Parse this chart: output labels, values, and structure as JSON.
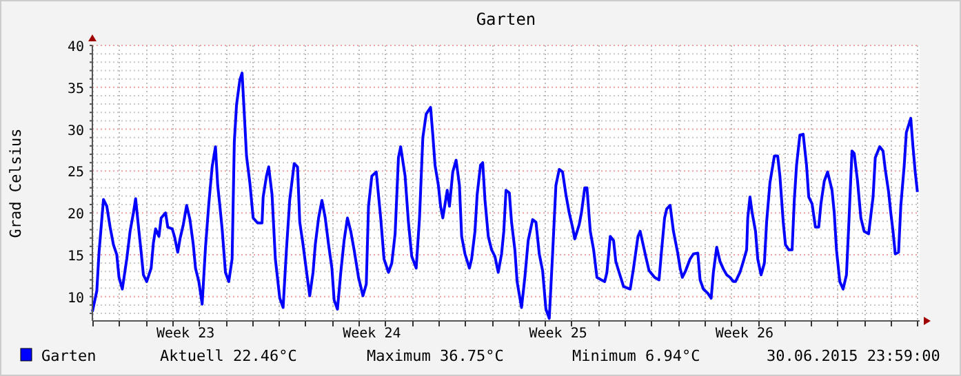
{
  "chart_data": {
    "type": "line",
    "title": "Garten",
    "ylabel": "Grad Celsius",
    "xlim": [
      "2015-05-31T00:00",
      "2015-07-01T02:00"
    ],
    "ylim": [
      7.1,
      40
    ],
    "xticks": [
      {
        "value": "2015-05-31T00:00",
        "label": null
      },
      {
        "value": "2015-06-01T00:00",
        "label": null
      },
      {
        "value": "2015-06-02T00:00",
        "label": null
      },
      {
        "value": "2015-06-03T00:00",
        "label": null
      },
      {
        "value": "2015-06-03T12:00",
        "label": "Week 23"
      },
      {
        "value": "2015-06-04T00:00",
        "label": null
      },
      {
        "value": "2015-06-05T00:00",
        "label": null
      },
      {
        "value": "2015-06-06T00:00",
        "label": null
      },
      {
        "value": "2015-06-07T00:00",
        "label": null
      },
      {
        "value": "2015-06-08T00:00",
        "label": null
      },
      {
        "value": "2015-06-09T00:00",
        "label": null
      },
      {
        "value": "2015-06-10T00:00",
        "label": null
      },
      {
        "value": "2015-06-10T12:00",
        "label": "Week 24"
      },
      {
        "value": "2015-06-11T00:00",
        "label": null
      },
      {
        "value": "2015-06-12T00:00",
        "label": null
      },
      {
        "value": "2015-06-13T00:00",
        "label": null
      },
      {
        "value": "2015-06-14T00:00",
        "label": null
      },
      {
        "value": "2015-06-15T00:00",
        "label": null
      },
      {
        "value": "2015-06-16T00:00",
        "label": null
      },
      {
        "value": "2015-06-17T00:00",
        "label": null
      },
      {
        "value": "2015-06-17T12:00",
        "label": "Week 25"
      },
      {
        "value": "2015-06-18T00:00",
        "label": null
      },
      {
        "value": "2015-06-19T00:00",
        "label": null
      },
      {
        "value": "2015-06-20T00:00",
        "label": null
      },
      {
        "value": "2015-06-21T00:00",
        "label": null
      },
      {
        "value": "2015-06-22T00:00",
        "label": null
      },
      {
        "value": "2015-06-23T00:00",
        "label": null
      },
      {
        "value": "2015-06-24T00:00",
        "label": null
      },
      {
        "value": "2015-06-24T12:00",
        "label": "Week 26"
      },
      {
        "value": "2015-06-25T00:00",
        "label": null
      },
      {
        "value": "2015-06-26T00:00",
        "label": null
      },
      {
        "value": "2015-06-27T00:00",
        "label": null
      },
      {
        "value": "2015-06-28T00:00",
        "label": null
      },
      {
        "value": "2015-06-29T00:00",
        "label": null
      },
      {
        "value": "2015-06-30T00:00",
        "label": null
      },
      {
        "value": "2015-07-01T00:00",
        "label": null
      }
    ],
    "yticks": [
      {
        "value": 8,
        "label": null
      },
      {
        "value": 9,
        "label": null
      },
      10,
      {
        "value": 11,
        "label": null
      },
      {
        "value": 12,
        "label": null
      },
      {
        "value": 13,
        "label": null
      },
      {
        "value": 14,
        "label": null
      },
      15,
      {
        "value": 16,
        "label": null
      },
      {
        "value": 17,
        "label": null
      },
      {
        "value": 18,
        "label": null
      },
      {
        "value": 19,
        "label": null
      },
      20,
      {
        "value": 21,
        "label": null
      },
      {
        "value": 22,
        "label": null
      },
      {
        "value": 23,
        "label": null
      },
      {
        "value": 24,
        "label": null
      },
      25,
      {
        "value": 26,
        "label": null
      },
      {
        "value": 27,
        "label": null
      },
      {
        "value": 28,
        "label": null
      },
      {
        "value": 29,
        "label": null
      },
      30,
      {
        "value": 31,
        "label": null
      },
      {
        "value": 32,
        "label": null
      },
      {
        "value": 33,
        "label": null
      },
      {
        "value": 34,
        "label": null
      },
      35,
      {
        "value": 36,
        "label": null
      },
      {
        "value": 37,
        "label": null
      },
      {
        "value": 38,
        "label": null
      },
      {
        "value": 39,
        "label": null
      },
      40
    ],
    "grid": true,
    "legend": "bottom",
    "line_style": "solid",
    "annotations": [
      "Aktuell 22.46°C",
      "Maximum 36.75°C",
      "Minimum 6.94°C",
      "30.06.2015 23:59:00"
    ],
    "series": [
      {
        "name": "Garten",
        "color": "#0000ff",
        "x": [
          "2015-05-31T00:00",
          "2015-05-31T04:00",
          "2015-05-31T06:00",
          "2015-05-31T10:00",
          "2015-05-31T13:00",
          "2015-05-31T16:00",
          "2015-05-31T19:00",
          "2015-05-31T22:00",
          "2015-06-01T00:00",
          "2015-06-01T03:00",
          "2015-06-01T07:00",
          "2015-06-01T10:00",
          "2015-06-01T13:00",
          "2015-06-01T15:00",
          "2015-06-01T18:00",
          "2015-06-01T20:00",
          "2015-06-01T22:00",
          "2015-06-02T01:00",
          "2015-06-02T05:00",
          "2015-06-02T07:00",
          "2015-06-02T09:00",
          "2015-06-02T12:00",
          "2015-06-02T14:00",
          "2015-06-02T18:00",
          "2015-06-02T20:00",
          "2015-06-03T00:00",
          "2015-06-03T02:00",
          "2015-06-03T05:00",
          "2015-06-03T07:00",
          "2015-06-03T10:00",
          "2015-06-03T13:00",
          "2015-06-03T16:00",
          "2015-06-03T19:00",
          "2015-06-03T21:00",
          "2015-06-04T00:00",
          "2015-06-04T03:00",
          "2015-06-04T06:00",
          "2015-06-04T09:00",
          "2015-06-04T12:00",
          "2015-06-04T15:00",
          "2015-06-04T17:00",
          "2015-06-04T19:00",
          "2015-06-04T21:00",
          "2015-06-05T00:00",
          "2015-06-05T03:00",
          "2015-06-05T06:00",
          "2015-06-05T08:00",
          "2015-06-05T10:00",
          "2015-06-05T13:00",
          "2015-06-05T15:00",
          "2015-06-05T17:00",
          "2015-06-05T19:00",
          "2015-06-05T22:00",
          "2015-06-06T01:00",
          "2015-06-06T05:00",
          "2015-06-06T09:00",
          "2015-06-06T10:00",
          "2015-06-06T13:00",
          "2015-06-06T15:00",
          "2015-06-06T18:00",
          "2015-06-06T21:00",
          "2015-06-07T01:00",
          "2015-06-07T04:00",
          "2015-06-07T07:00",
          "2015-06-07T10:00",
          "2015-06-07T14:00",
          "2015-06-07T17:00",
          "2015-06-07T19:00",
          "2015-06-07T22:00",
          "2015-06-08T01:00",
          "2015-06-08T04:00",
          "2015-06-08T07:00",
          "2015-06-08T09:00",
          "2015-06-08T12:00",
          "2015-06-08T15:00",
          "2015-06-08T18:00",
          "2015-06-08T21:00",
          "2015-06-09T00:00",
          "2015-06-09T02:00",
          "2015-06-09T05:00",
          "2015-06-09T08:00",
          "2015-06-09T11:00",
          "2015-06-09T14:00",
          "2015-06-09T17:00",
          "2015-06-09T20:00",
          "2015-06-10T00:00",
          "2015-06-10T04:00",
          "2015-06-10T07:00",
          "2015-06-10T09:00",
          "2015-06-10T12:00",
          "2015-06-10T16:00",
          "2015-06-10T20:00",
          "2015-06-10T23:00",
          "2015-06-11T03:00",
          "2015-06-11T06:00",
          "2015-06-11T09:00",
          "2015-06-11T12:00",
          "2015-06-11T14:00",
          "2015-06-11T18:00",
          "2015-06-11T21:00",
          "2015-06-12T00:00",
          "2015-06-12T04:00",
          "2015-06-12T07:00",
          "2015-06-12T10:00",
          "2015-06-12T13:00",
          "2015-06-12T17:00",
          "2015-06-12T19:00",
          "2015-06-12T21:00",
          "2015-06-13T00:00",
          "2015-06-13T02:00",
          "2015-06-13T04:00",
          "2015-06-13T08:00",
          "2015-06-13T10:00",
          "2015-06-13T13:00",
          "2015-06-13T16:00",
          "2015-06-13T19:00",
          "2015-06-13T21:00",
          "2015-06-14T00:00",
          "2015-06-14T04:00",
          "2015-06-14T06:00",
          "2015-06-14T09:00",
          "2015-06-14T11:00",
          "2015-06-14T14:00",
          "2015-06-14T16:00",
          "2015-06-14T18:00",
          "2015-06-14T21:00",
          "2015-06-15T00:00",
          "2015-06-15T03:00",
          "2015-06-15T06:00",
          "2015-06-15T09:00",
          "2015-06-15T11:00",
          "2015-06-15T13:00",
          "2015-06-15T16:00",
          "2015-06-15T18:00",
          "2015-06-15T21:00",
          "2015-06-15T23:00",
          "2015-06-16T03:00",
          "2015-06-16T06:00",
          "2015-06-16T09:00",
          "2015-06-16T13:00",
          "2015-06-16T16:00",
          "2015-06-16T19:00",
          "2015-06-16T22:00",
          "2015-06-17T01:00",
          "2015-06-17T04:00",
          "2015-06-17T07:00",
          "2015-06-17T10:00",
          "2015-06-17T13:00",
          "2015-06-17T16:00",
          "2015-06-17T19:00",
          "2015-06-17T22:00",
          "2015-06-18T01:00",
          "2015-06-18T03:00",
          "2015-06-18T07:00",
          "2015-06-18T09:00",
          "2015-06-18T12:00",
          "2015-06-18T14:00",
          "2015-06-18T17:00",
          "2015-06-18T20:00",
          "2015-06-18T23:00",
          "2015-06-19T03:00",
          "2015-06-19T06:00",
          "2015-06-19T08:00",
          "2015-06-19T11:00",
          "2015-06-19T14:00",
          "2015-06-19T16:00",
          "2015-06-19T19:00",
          "2015-06-19T23:00",
          "2015-06-20T05:00",
          "2015-06-20T08:00",
          "2015-06-20T12:00",
          "2015-06-20T14:00",
          "2015-06-20T19:00",
          "2015-06-20T22:00",
          "2015-06-21T03:00",
          "2015-06-21T07:00",
          "2015-06-21T09:00",
          "2015-06-21T12:00",
          "2015-06-21T14:00",
          "2015-06-21T17:00",
          "2015-06-21T20:00",
          "2015-06-22T00:00",
          "2015-06-22T02:00",
          "2015-06-22T04:00",
          "2015-06-22T07:00",
          "2015-06-22T11:00",
          "2015-06-22T14:00",
          "2015-06-22T18:00",
          "2015-06-22T20:00",
          "2015-06-22T23:00",
          "2015-06-23T03:00",
          "2015-06-23T06:00",
          "2015-06-23T08:00",
          "2015-06-23T11:00",
          "2015-06-23T14:00",
          "2015-06-23T17:00",
          "2015-06-23T20:00",
          "2015-06-23T23:00",
          "2015-06-24T02:00",
          "2015-06-24T04:00",
          "2015-06-24T08:00",
          "2015-06-24T11:00",
          "2015-06-24T14:00",
          "2015-06-24T15:00",
          "2015-06-24T17:00",
          "2015-06-24T19:00",
          "2015-06-24T22:00",
          "2015-06-25T00:00",
          "2015-06-25T03:00",
          "2015-06-25T06:00",
          "2015-06-25T08:00",
          "2015-06-25T11:00",
          "2015-06-25T15:00",
          "2015-06-25T18:00",
          "2015-06-25T20:00",
          "2015-06-25T23:00",
          "2015-06-26T01:00",
          "2015-06-26T04:00",
          "2015-06-26T07:00",
          "2015-06-26T09:00",
          "2015-06-26T11:00",
          "2015-06-26T14:00",
          "2015-06-26T17:00",
          "2015-06-26T20:00",
          "2015-06-26T22:00",
          "2015-06-27T01:00",
          "2015-06-27T04:00",
          "2015-06-27T07:00",
          "2015-06-27T09:00",
          "2015-06-27T12:00",
          "2015-06-27T15:00",
          "2015-06-27T19:00",
          "2015-06-27T21:00",
          "2015-06-27T23:00",
          "2015-06-28T02:00",
          "2015-06-28T05:00",
          "2015-06-28T08:00",
          "2015-06-28T10:00",
          "2015-06-28T13:00",
          "2015-06-28T15:00",
          "2015-06-28T18:00",
          "2015-06-28T21:00",
          "2015-06-29T00:00",
          "2015-06-29T04:00",
          "2015-06-29T08:00",
          "2015-06-29T10:00",
          "2015-06-29T14:00",
          "2015-06-29T17:00",
          "2015-06-29T19:00",
          "2015-06-29T22:00",
          "2015-06-30T00:00",
          "2015-06-30T02:00",
          "2015-06-30T04:00",
          "2015-06-30T07:00",
          "2015-06-30T09:00",
          "2015-06-30T12:00",
          "2015-06-30T14:00",
          "2015-06-30T18:00",
          "2015-06-30T20:00",
          "2015-06-30T22:00",
          "2015-07-01T00:00"
        ],
        "values": [
          8.2,
          10.7,
          15.3,
          21.6,
          20.8,
          18.3,
          16.2,
          15.0,
          12.3,
          10.9,
          14.5,
          17.8,
          20.0,
          21.7,
          17.8,
          15.3,
          12.6,
          11.8,
          13.4,
          16.4,
          18.1,
          17.2,
          19.4,
          20.0,
          18.3,
          18.1,
          17.2,
          15.3,
          16.9,
          18.6,
          20.9,
          19.2,
          16.2,
          13.4,
          11.8,
          9.1,
          15.9,
          21.1,
          25.5,
          27.9,
          23.3,
          20.8,
          18.1,
          12.9,
          11.8,
          14.5,
          28.5,
          32.9,
          35.9,
          36.7,
          31.8,
          26.8,
          23.6,
          19.4,
          18.8,
          18.8,
          21.9,
          24.4,
          25.5,
          22.2,
          14.5,
          9.8,
          8.7,
          15.6,
          21.6,
          25.9,
          25.5,
          18.9,
          16.2,
          13.1,
          10.1,
          12.9,
          16.2,
          19.4,
          21.5,
          19.4,
          16.2,
          13.4,
          9.6,
          8.5,
          12.9,
          16.7,
          19.4,
          17.8,
          15.6,
          12.3,
          10.1,
          11.5,
          20.8,
          24.4,
          24.9,
          19.4,
          14.5,
          12.9,
          14.0,
          17.5,
          26.6,
          27.9,
          24.4,
          18.9,
          14.8,
          13.4,
          19.4,
          29.0,
          31.8,
          32.6,
          29.3,
          25.7,
          23.3,
          20.8,
          19.4,
          22.7,
          20.8,
          24.9,
          26.3,
          23.3,
          17.2,
          15.1,
          13.4,
          14.5,
          17.8,
          22.2,
          25.7,
          26.0,
          21.6,
          17.2,
          15.6,
          14.8,
          12.9,
          15.1,
          17.8,
          22.7,
          22.4,
          18.9,
          15.6,
          11.8,
          8.7,
          12.3,
          16.7,
          19.2,
          18.9,
          15.1,
          13.1,
          8.5,
          7.4,
          15.1,
          23.3,
          25.2,
          24.9,
          22.2,
          20.0,
          18.3,
          16.9,
          18.6,
          20.0,
          23.0,
          23.0,
          17.8,
          15.6,
          12.3,
          12.0,
          11.8,
          12.9,
          17.2,
          16.7,
          14.2,
          12.9,
          11.2,
          10.9,
          13.4,
          17.2,
          17.8,
          14.8,
          13.1,
          12.3,
          12.0,
          15.1,
          19.4,
          20.5,
          20.9,
          17.8,
          15.1,
          13.4,
          12.3,
          13.1,
          14.5,
          15.1,
          15.2,
          12.0,
          10.9,
          10.4,
          9.8,
          12.9,
          15.9,
          14.2,
          13.3,
          12.6,
          12.3,
          11.8,
          11.8,
          12.9,
          14.2,
          15.6,
          19.4,
          21.9,
          20.0,
          17.8,
          14.5,
          12.6,
          14.0,
          18.9,
          23.6,
          26.8,
          26.8,
          24.4,
          18.9,
          16.2,
          15.6,
          15.6,
          21.6,
          25.7,
          29.3,
          29.4,
          25.7,
          21.9,
          21.1,
          18.3,
          18.3,
          21.1,
          23.8,
          24.9,
          22.7,
          20.0,
          15.6,
          11.8,
          10.9,
          12.6,
          18.3,
          27.4,
          27.1,
          23.8,
          19.4,
          17.8,
          17.5,
          21.9,
          26.6,
          27.9,
          27.4,
          25.2,
          22.5,
          20.0,
          17.8,
          15.1,
          15.3,
          20.8,
          25.5,
          29.6,
          31.3,
          27.9,
          24.9,
          22.5
        ]
      }
    ]
  }
}
